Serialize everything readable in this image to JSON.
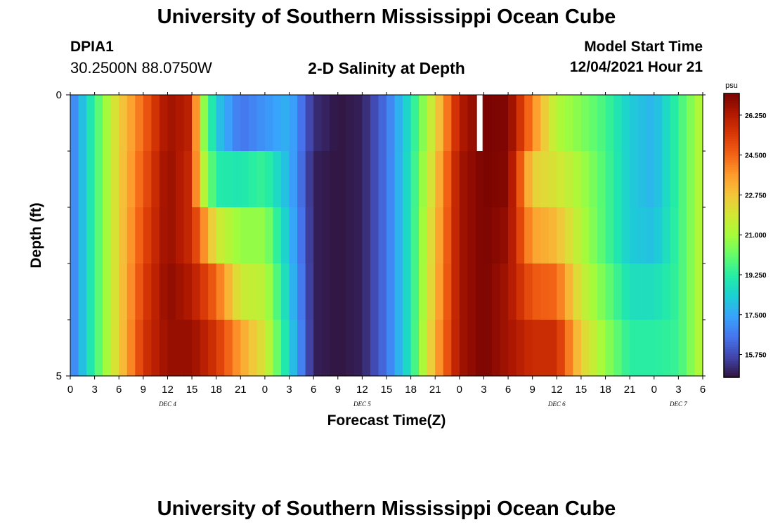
{
  "header": {
    "title": "University of Southern Mississippi Ocean Cube",
    "station_id": "DPIA1",
    "coordinates": "30.2500N  88.0750W",
    "plot_title": "2-D Salinity at Depth",
    "model_start_label": "Model Start Time",
    "model_start_value": "12/04/2021 Hour 21"
  },
  "footer": {
    "title": "University of Southern Mississippi Ocean Cube"
  },
  "colors": {
    "scale": [
      "#30123b",
      "#4145ab",
      "#4675ed",
      "#39a2fc",
      "#1bcfd4",
      "#24eca6",
      "#61fc6c",
      "#a4fc3b",
      "#d1e834",
      "#f3c63a",
      "#fe9b2d",
      "#f36315",
      "#d93806",
      "#b11901",
      "#7a0402"
    ],
    "gap": "#ffffff"
  },
  "chart_data": {
    "type": "heatmap",
    "title": "2-D Salinity at Depth",
    "xlabel": "Forecast Time(Z)",
    "ylabel": "Depth (ft)",
    "x_tick_labels": [
      "0",
      "3",
      "6",
      "9",
      "12",
      "15",
      "18",
      "21",
      "0",
      "3",
      "6",
      "9",
      "12",
      "15",
      "18",
      "21",
      "0",
      "3",
      "6",
      "9",
      "12",
      "15",
      "18",
      "21",
      "0",
      "3",
      "6"
    ],
    "day_labels": [
      {
        "label": "DEC 4",
        "hour": 12
      },
      {
        "label": "DEC 5",
        "hour": 36
      },
      {
        "label": "DEC 6",
        "hour": 60
      },
      {
        "label": "DEC 7",
        "hour": 75
      }
    ],
    "x_range_hours": [
      0,
      78
    ],
    "y_tick_labels": [
      "0",
      "5"
    ],
    "y_range_ft": [
      0,
      5
    ],
    "depth_levels": 5,
    "colorbar": {
      "unit": "psu",
      "range": [
        14.75,
        27.2
      ],
      "tick_labels": [
        "26.250",
        "24.500",
        "22.750",
        "21.000",
        "19.250",
        "17.500",
        "15.750"
      ],
      "tick_values": [
        26.25,
        24.5,
        22.75,
        21.0,
        19.25,
        17.5,
        15.75
      ]
    },
    "missing": {
      "depth_level": 0,
      "hour": 50
    },
    "series": [
      {
        "depth_level": 0,
        "hours": [
          0,
          3,
          6,
          9,
          12,
          15,
          16,
          18,
          21,
          24,
          27,
          30,
          33,
          36,
          39,
          42,
          45,
          48,
          51,
          54,
          57,
          60,
          63,
          66,
          69,
          72,
          75,
          78
        ],
        "values": [
          16.5,
          19.5,
          22.5,
          24.5,
          26.5,
          26.0,
          22.5,
          18.0,
          15.5,
          15.8,
          18.0,
          15.5,
          14.8,
          15.0,
          16.5,
          18.8,
          22.0,
          26.0,
          27.2,
          27.2,
          26.0,
          21.0,
          20.0,
          19.3,
          18.0,
          17.5,
          19.5,
          21.5
        ]
      },
      {
        "depth_level": 1,
        "hours": [
          0,
          3,
          6,
          9,
          12,
          15,
          16,
          18,
          21,
          24,
          27,
          30,
          33,
          36,
          39,
          42,
          45,
          48,
          51,
          54,
          57,
          60,
          63,
          66,
          69,
          72,
          75,
          78
        ],
        "values": [
          16.5,
          19.5,
          22.5,
          24.5,
          26.8,
          26.0,
          20.5,
          18.5,
          17.5,
          18.5,
          17.5,
          15.0,
          14.8,
          15.0,
          16.5,
          19.0,
          22.5,
          26.5,
          27.2,
          27.0,
          22.0,
          21.5,
          21.0,
          20.0,
          18.5,
          18.0,
          19.5,
          21.5
        ]
      },
      {
        "depth_level": 2,
        "hours": [
          0,
          3,
          6,
          9,
          12,
          15,
          18,
          21,
          24,
          27,
          30,
          33,
          36,
          39,
          42,
          45,
          48,
          51,
          54,
          57,
          60,
          63,
          66,
          69,
          72,
          75,
          78
        ],
        "values": [
          16.5,
          19.5,
          22.5,
          25.0,
          26.8,
          25.5,
          19.8,
          20.5,
          20.5,
          18.0,
          15.0,
          14.8,
          15.0,
          16.5,
          19.0,
          22.8,
          26.5,
          27.2,
          27.0,
          23.0,
          22.5,
          21.0,
          19.5,
          18.0,
          17.5,
          19.5,
          21.5
        ]
      },
      {
        "depth_level": 3,
        "hours": [
          0,
          3,
          6,
          9,
          12,
          15,
          18,
          21,
          24,
          27,
          30,
          33,
          36,
          39,
          42,
          45,
          48,
          51,
          54,
          57,
          60,
          63,
          66,
          69,
          72,
          75,
          78
        ],
        "values": [
          16.5,
          19.5,
          22.5,
          25.0,
          26.8,
          26.0,
          24.0,
          21.0,
          21.0,
          18.0,
          15.0,
          14.8,
          15.0,
          16.5,
          19.0,
          23.0,
          26.5,
          27.2,
          26.5,
          24.0,
          23.5,
          21.5,
          20.0,
          18.5,
          18.5,
          19.5,
          21.5
        ]
      },
      {
        "depth_level": 4,
        "hours": [
          0,
          3,
          6,
          9,
          12,
          15,
          18,
          21,
          24,
          27,
          30,
          33,
          36,
          39,
          42,
          45,
          48,
          51,
          54,
          57,
          60,
          63,
          66,
          69,
          72,
          75,
          78
        ],
        "values": [
          16.5,
          19.5,
          22.5,
          25.5,
          27.0,
          26.5,
          25.0,
          22.5,
          21.8,
          18.5,
          15.0,
          14.8,
          15.0,
          16.5,
          19.0,
          23.0,
          26.5,
          27.2,
          26.5,
          25.5,
          25.5,
          22.0,
          20.5,
          19.0,
          19.0,
          19.5,
          21.5
        ]
      },
      {
        "depth_level": 5,
        "hours": [
          0,
          3,
          6,
          9,
          12,
          15,
          18,
          21,
          24,
          27,
          30,
          33,
          36,
          39,
          42,
          45,
          48,
          51,
          54,
          57,
          60,
          63,
          66,
          69,
          72,
          75,
          78
        ],
        "values": [
          16.5,
          19.5,
          22.5,
          25.5,
          26.5,
          27.0,
          26.0,
          24.5,
          22.0,
          18.5,
          15.0,
          14.8,
          15.0,
          16.5,
          19.0,
          23.5,
          26.5,
          27.2,
          26.5,
          26.0,
          26.0,
          23.0,
          21.0,
          19.5,
          19.5,
          19.5,
          21.5
        ]
      }
    ]
  }
}
